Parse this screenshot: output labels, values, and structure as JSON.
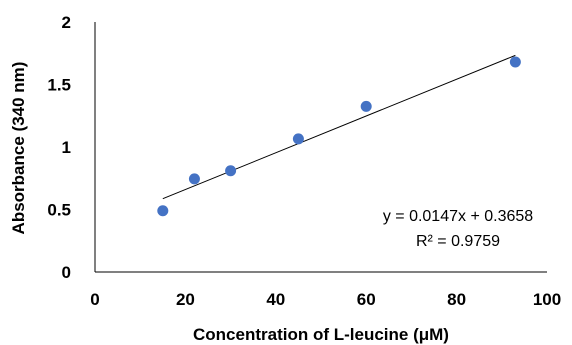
{
  "chart_data": {
    "type": "scatter",
    "xlabel": "Concentration of L-leucine (μM)",
    "ylabel": "Absorbance (340 nm)",
    "xlim": [
      0,
      100
    ],
    "ylim": [
      0,
      2
    ],
    "x_ticks": [
      0,
      20,
      40,
      60,
      80,
      100
    ],
    "y_ticks": [
      0,
      0.5,
      1,
      1.5,
      2
    ],
    "x_tick_labels": [
      "0",
      "20",
      "40",
      "60",
      "80",
      "100"
    ],
    "y_tick_labels": [
      "0",
      "0.5",
      "1",
      "1.5",
      "2"
    ],
    "grid": false,
    "legend": "none",
    "series": [
      {
        "x": [
          15,
          22,
          30,
          45,
          60,
          93
        ],
        "y": [
          0.49,
          0.745,
          0.81,
          1.065,
          1.325,
          1.68
        ],
        "color": "#4472C4"
      }
    ],
    "trendline": {
      "slope": 0.0147,
      "intercept": 0.3658,
      "x_range": [
        15,
        93
      ],
      "color": "#000000",
      "equation": "y = 0.0147x + 0.3658",
      "r_squared": "R² = 0.9759"
    }
  }
}
